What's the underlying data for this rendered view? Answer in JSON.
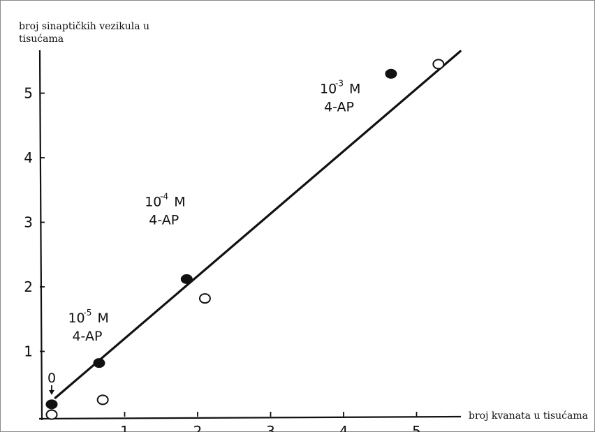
{
  "chart_data": {
    "type": "scatter",
    "title": "",
    "ylabel_line1": "broj sinaptičkih vezikula u",
    "ylabel_line2": "tisućama",
    "xlabel": "broj kvanata u tisućama",
    "xlim": [
      -0.2,
      5.6
    ],
    "ylim": [
      -0.1,
      5.6
    ],
    "x_ticks": [
      1,
      2,
      3,
      4,
      5
    ],
    "y_ticks": [
      1,
      2,
      3,
      4,
      5
    ],
    "grid": false,
    "series": [
      {
        "marker": "filled-circle",
        "points": [
          {
            "x": 0.0,
            "y": 0.18
          },
          {
            "x": 0.65,
            "y": 0.82
          },
          {
            "x": 1.85,
            "y": 2.12
          },
          {
            "x": 4.65,
            "y": 5.3
          }
        ]
      },
      {
        "marker": "open-circle",
        "points": [
          {
            "x": 0.0,
            "y": 0.02
          },
          {
            "x": 0.7,
            "y": 0.25
          },
          {
            "x": 2.1,
            "y": 1.82
          },
          {
            "x": 5.3,
            "y": 5.45
          }
        ]
      }
    ],
    "fit_line": {
      "x1": 0.05,
      "y1": 0.28,
      "x2": 5.6,
      "y2": 5.65
    },
    "annotations": [
      {
        "base": "10",
        "exp": "-5",
        "unit": "M",
        "line2": "4-AP",
        "x": 0.55,
        "y": 1.45
      },
      {
        "base": "10",
        "exp": "-4",
        "unit": "M",
        "line2": "4-AP",
        "x": 1.6,
        "y": 3.25
      },
      {
        "base": "10",
        "exp": "-3",
        "unit": "M",
        "line2": "4-AP",
        "x": 4.0,
        "y": 5.0
      },
      {
        "base": "0",
        "exp": "",
        "unit": "",
        "line2": "",
        "x": 0.0,
        "y": 0.52
      }
    ],
    "colors": {
      "ink": "#111111",
      "background": "#ffffff",
      "frame": "#8a8a8a"
    }
  }
}
